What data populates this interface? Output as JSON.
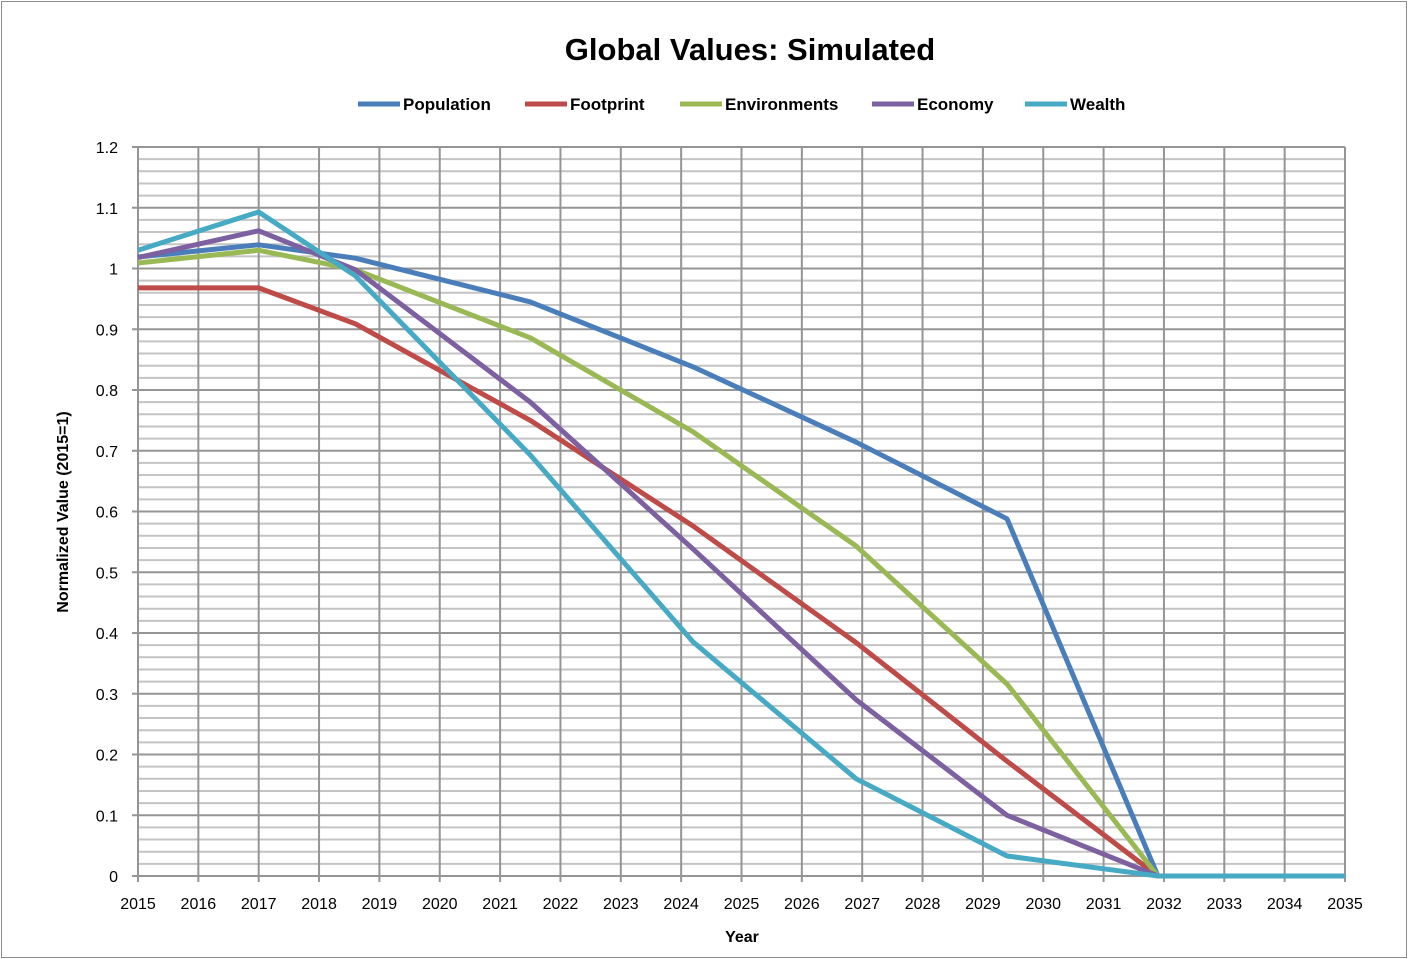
{
  "chart_data": {
    "type": "line",
    "title": "Global Values: Simulated",
    "xlabel": "Year",
    "ylabel": "Normalized Value (2015=1)",
    "xlim": [
      2015,
      2035
    ],
    "ylim": [
      0,
      1.2
    ],
    "x_ticks": [
      "2015",
      "2016",
      "2017",
      "2018",
      "2019",
      "2020",
      "2021",
      "2022",
      "2023",
      "2024",
      "2025",
      "2026",
      "2027",
      "2028",
      "2029",
      "2030",
      "2031",
      "2032",
      "2033",
      "2034",
      "2035"
    ],
    "y_ticks": [
      "0",
      "0.1",
      "0.2",
      "0.3",
      "0.4",
      "0.5",
      "0.6",
      "0.7",
      "0.8",
      "0.9",
      "1",
      "1.1",
      "1.2"
    ],
    "grid": true,
    "legend_position": "top",
    "x": [
      2015,
      2017,
      2018.6,
      2021.5,
      2024.2,
      2026.9,
      2029.4,
      2031.9,
      2035
    ],
    "series": [
      {
        "name": "Population",
        "color": "#4a7ebb",
        "values": [
          1.019,
          1.039,
          1.017,
          0.945,
          0.838,
          0.714,
          0.588,
          0,
          0
        ]
      },
      {
        "name": "Footprint",
        "color": "#be4b48",
        "values": [
          0.968,
          0.968,
          0.909,
          0.75,
          0.576,
          0.384,
          0.189,
          0,
          0
        ]
      },
      {
        "name": "Environments",
        "color": "#98b954",
        "values": [
          1.009,
          1.03,
          0.998,
          0.886,
          0.731,
          0.543,
          0.316,
          0,
          0
        ]
      },
      {
        "name": "Economy",
        "color": "#7d60a0",
        "values": [
          1.018,
          1.062,
          0.998,
          0.78,
          0.538,
          0.29,
          0.1,
          0,
          0
        ]
      },
      {
        "name": "Wealth",
        "color": "#46aac5",
        "values": [
          1.03,
          1.093,
          0.988,
          0.693,
          0.385,
          0.16,
          0.033,
          0,
          0
        ]
      }
    ]
  }
}
